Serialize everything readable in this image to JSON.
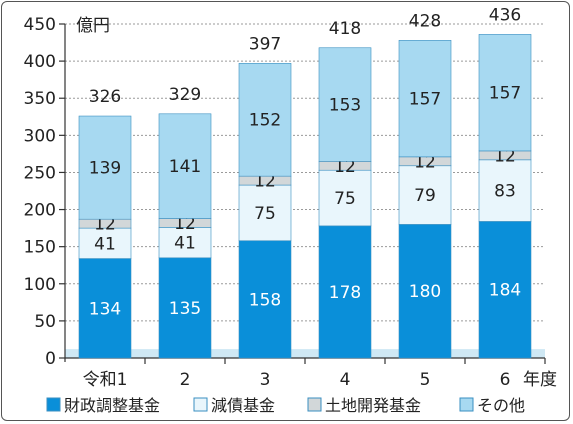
{
  "chart_data": {
    "type": "bar",
    "stacked": true,
    "unit_label": "億円",
    "x_unit_label": "年度",
    "categories": [
      "令和1",
      "2",
      "3",
      "4",
      "5",
      "6"
    ],
    "ylim": [
      0,
      450
    ],
    "yticks": [
      0,
      50,
      100,
      150,
      200,
      250,
      300,
      350,
      400,
      450
    ],
    "grid": true,
    "legend_position": "bottom",
    "series": [
      {
        "name": "財政調整基金",
        "values": [
          134,
          135,
          158,
          178,
          180,
          184
        ],
        "color": "#0a8fd9",
        "label_color": "#ffffff"
      },
      {
        "name": "減債基金",
        "values": [
          41,
          41,
          75,
          75,
          79,
          83
        ],
        "color": "#e9f6fc",
        "label_color": "#222222"
      },
      {
        "name": "土地開発基金",
        "values": [
          12,
          12,
          12,
          12,
          12,
          12
        ],
        "color": "#d2d7d9",
        "label_color": "#222222"
      },
      {
        "name": "その他",
        "values": [
          139,
          141,
          152,
          153,
          157,
          157
        ],
        "color": "#a7d9f1",
        "label_color": "#222222"
      }
    ],
    "totals": [
      326,
      329,
      397,
      418,
      428,
      436
    ]
  }
}
